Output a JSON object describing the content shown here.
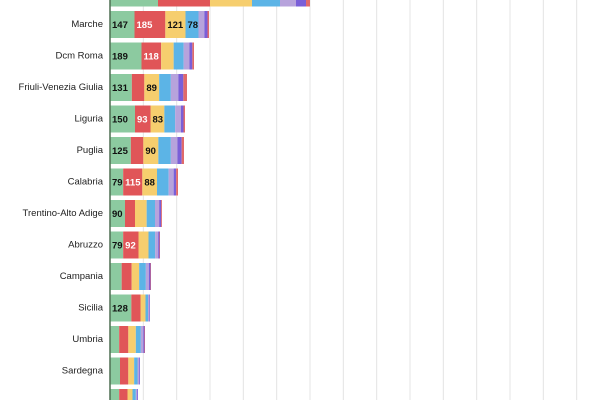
{
  "chart_data": {
    "type": "stacked-bar-horizontal",
    "categories": [
      null,
      "Marche",
      "Dcm Roma",
      "Friuli-Venezia Giulia",
      "Liguria",
      "Puglia",
      "Calabria",
      "Trentino-Alto Adige",
      "Abruzzo",
      "Campania",
      "Sicilia",
      "Umbria",
      "Sardegna",
      null
    ],
    "series": [
      {
        "color": "#8ccaa0",
        "values": [
          288,
          147,
          189,
          131,
          150,
          125,
          79,
          90,
          79,
          70,
          128,
          55,
          60,
          55
        ]
      },
      {
        "color": "#e05558",
        "values": [
          312,
          185,
          118,
          75,
          93,
          75,
          115,
          60,
          92,
          60,
          55,
          55,
          50,
          50
        ]
      },
      {
        "color": "#f6ce6e",
        "values": [
          252,
          121,
          75,
          89,
          83,
          90,
          88,
          70,
          60,
          45,
          30,
          45,
          35,
          30
        ]
      },
      {
        "color": "#5cb4e6",
        "values": [
          168,
          78,
          60,
          70,
          65,
          75,
          70,
          50,
          40,
          40,
          15,
          30,
          20,
          20
        ]
      },
      {
        "color": "#b7a3dc",
        "values": [
          96,
          36,
          35,
          45,
          35,
          40,
          30,
          25,
          18,
          18,
          8,
          15,
          10,
          8
        ]
      },
      {
        "color": "#7a5fd8",
        "values": [
          60,
          18,
          17,
          30,
          15,
          25,
          15,
          12,
          8,
          10,
          4,
          7,
          5,
          5
        ]
      },
      {
        "color": "#e06a6a",
        "values": [
          24,
          9,
          10,
          22,
          9,
          14,
          11,
          5,
          3,
          3,
          0,
          3,
          0,
          0
        ]
      }
    ],
    "xlim": [
      0,
      2940
    ],
    "xticks": [
      0,
      200,
      400,
      600,
      800,
      1000,
      1200,
      1400,
      1600,
      1800,
      2000,
      2200,
      2400,
      2600,
      2800
    ],
    "grid": true
  }
}
